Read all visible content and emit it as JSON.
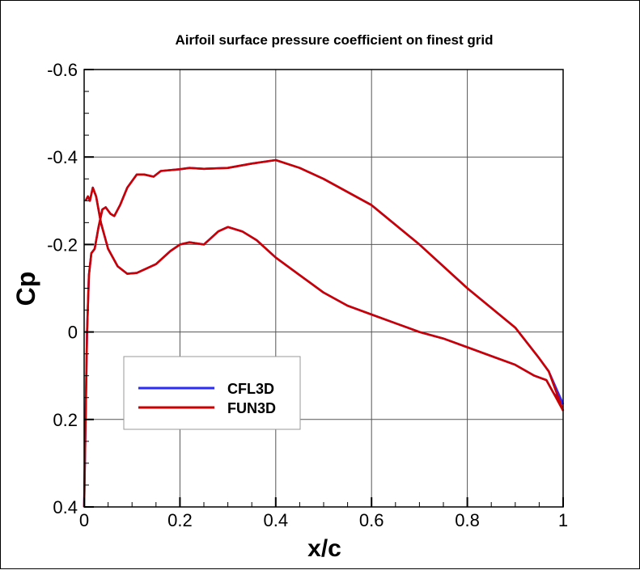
{
  "chart_data": {
    "type": "line",
    "title": "Airfoil surface pressure coefficient on finest grid",
    "xlabel": "x/c",
    "ylabel": "Cp",
    "xlim": [
      0,
      1
    ],
    "ylim": [
      0.4,
      -0.6
    ],
    "y_axis_inverted": true,
    "grid": true,
    "x_ticks": [
      "0",
      "0.2",
      "0.4",
      "0.6",
      "0.8",
      "1"
    ],
    "x_tick_values": [
      0,
      0.2,
      0.4,
      0.6,
      0.8,
      1
    ],
    "y_ticks": [
      "-0.6",
      "-0.4",
      "-0.2",
      "0",
      "0.2",
      "0.4"
    ],
    "y_tick_values": [
      -0.6,
      -0.4,
      -0.2,
      0,
      0.2,
      0.4
    ],
    "legend_position": "lower-left",
    "series": [
      {
        "name": "CFL3D",
        "color": "#2b2bff",
        "branch_a": {
          "x": [
            0.003,
            0.008,
            0.012,
            0.018,
            0.025,
            0.035,
            0.05,
            0.07,
            0.09,
            0.11,
            0.15,
            0.18,
            0.2,
            0.22,
            0.25,
            0.28,
            0.3,
            0.33,
            0.36,
            0.4,
            0.45,
            0.5,
            0.55,
            0.6,
            0.65,
            0.7,
            0.75,
            0.8,
            0.85,
            0.9,
            0.94,
            0.965,
            0.98,
            1
          ],
          "y": [
            -0.3,
            -0.31,
            -0.3,
            -0.33,
            -0.31,
            -0.25,
            -0.19,
            -0.15,
            -0.133,
            -0.135,
            -0.155,
            -0.185,
            -0.2,
            -0.205,
            -0.2,
            -0.23,
            -0.24,
            -0.23,
            -0.21,
            -0.17,
            -0.13,
            -0.09,
            -0.06,
            -0.04,
            -0.02,
            0.0,
            0.015,
            0.035,
            0.055,
            0.075,
            0.1,
            0.11,
            0.14,
            0.165
          ]
        },
        "branch_b": {
          "x": [
            0,
            0.003,
            0.006,
            0.01,
            0.015,
            0.022,
            0.03,
            0.038,
            0.045,
            0.055,
            0.063,
            0.075,
            0.09,
            0.11,
            0.125,
            0.145,
            0.16,
            0.2,
            0.22,
            0.25,
            0.3,
            0.35,
            0.4,
            0.45,
            0.5,
            0.6,
            0.7,
            0.8,
            0.9,
            0.95,
            0.97,
            1
          ],
          "y": [
            0.4,
            0.2,
            0.0,
            -0.13,
            -0.18,
            -0.19,
            -0.24,
            -0.28,
            -0.285,
            -0.27,
            -0.265,
            -0.29,
            -0.33,
            -0.36,
            -0.36,
            -0.355,
            -0.368,
            -0.372,
            -0.375,
            -0.373,
            -0.375,
            -0.385,
            -0.393,
            -0.375,
            -0.35,
            -0.29,
            -0.2,
            -0.1,
            -0.01,
            0.06,
            0.09,
            0.165
          ]
        }
      },
      {
        "name": "FUN3D",
        "color": "#cc0000",
        "branch_a": {
          "x": [
            0.003,
            0.008,
            0.012,
            0.018,
            0.025,
            0.035,
            0.05,
            0.07,
            0.09,
            0.11,
            0.15,
            0.18,
            0.2,
            0.22,
            0.25,
            0.28,
            0.3,
            0.33,
            0.36,
            0.4,
            0.45,
            0.5,
            0.55,
            0.6,
            0.65,
            0.7,
            0.75,
            0.8,
            0.85,
            0.9,
            0.94,
            0.965,
            0.98,
            1
          ],
          "y": [
            -0.3,
            -0.31,
            -0.3,
            -0.33,
            -0.31,
            -0.25,
            -0.19,
            -0.15,
            -0.133,
            -0.135,
            -0.155,
            -0.185,
            -0.2,
            -0.205,
            -0.2,
            -0.23,
            -0.24,
            -0.23,
            -0.21,
            -0.17,
            -0.13,
            -0.09,
            -0.06,
            -0.04,
            -0.02,
            0.0,
            0.015,
            0.035,
            0.055,
            0.075,
            0.1,
            0.11,
            0.14,
            0.18
          ]
        },
        "branch_b": {
          "x": [
            0,
            0.003,
            0.006,
            0.01,
            0.015,
            0.022,
            0.03,
            0.038,
            0.045,
            0.055,
            0.063,
            0.075,
            0.09,
            0.11,
            0.125,
            0.145,
            0.16,
            0.2,
            0.22,
            0.25,
            0.3,
            0.35,
            0.4,
            0.45,
            0.5,
            0.6,
            0.7,
            0.8,
            0.9,
            0.95,
            0.97,
            1
          ],
          "y": [
            0.4,
            0.2,
            0.0,
            -0.13,
            -0.18,
            -0.19,
            -0.24,
            -0.28,
            -0.285,
            -0.27,
            -0.265,
            -0.29,
            -0.33,
            -0.36,
            -0.36,
            -0.355,
            -0.368,
            -0.372,
            -0.375,
            -0.373,
            -0.375,
            -0.385,
            -0.393,
            -0.375,
            -0.35,
            -0.29,
            -0.2,
            -0.1,
            -0.01,
            0.06,
            0.09,
            0.18
          ]
        }
      }
    ]
  }
}
